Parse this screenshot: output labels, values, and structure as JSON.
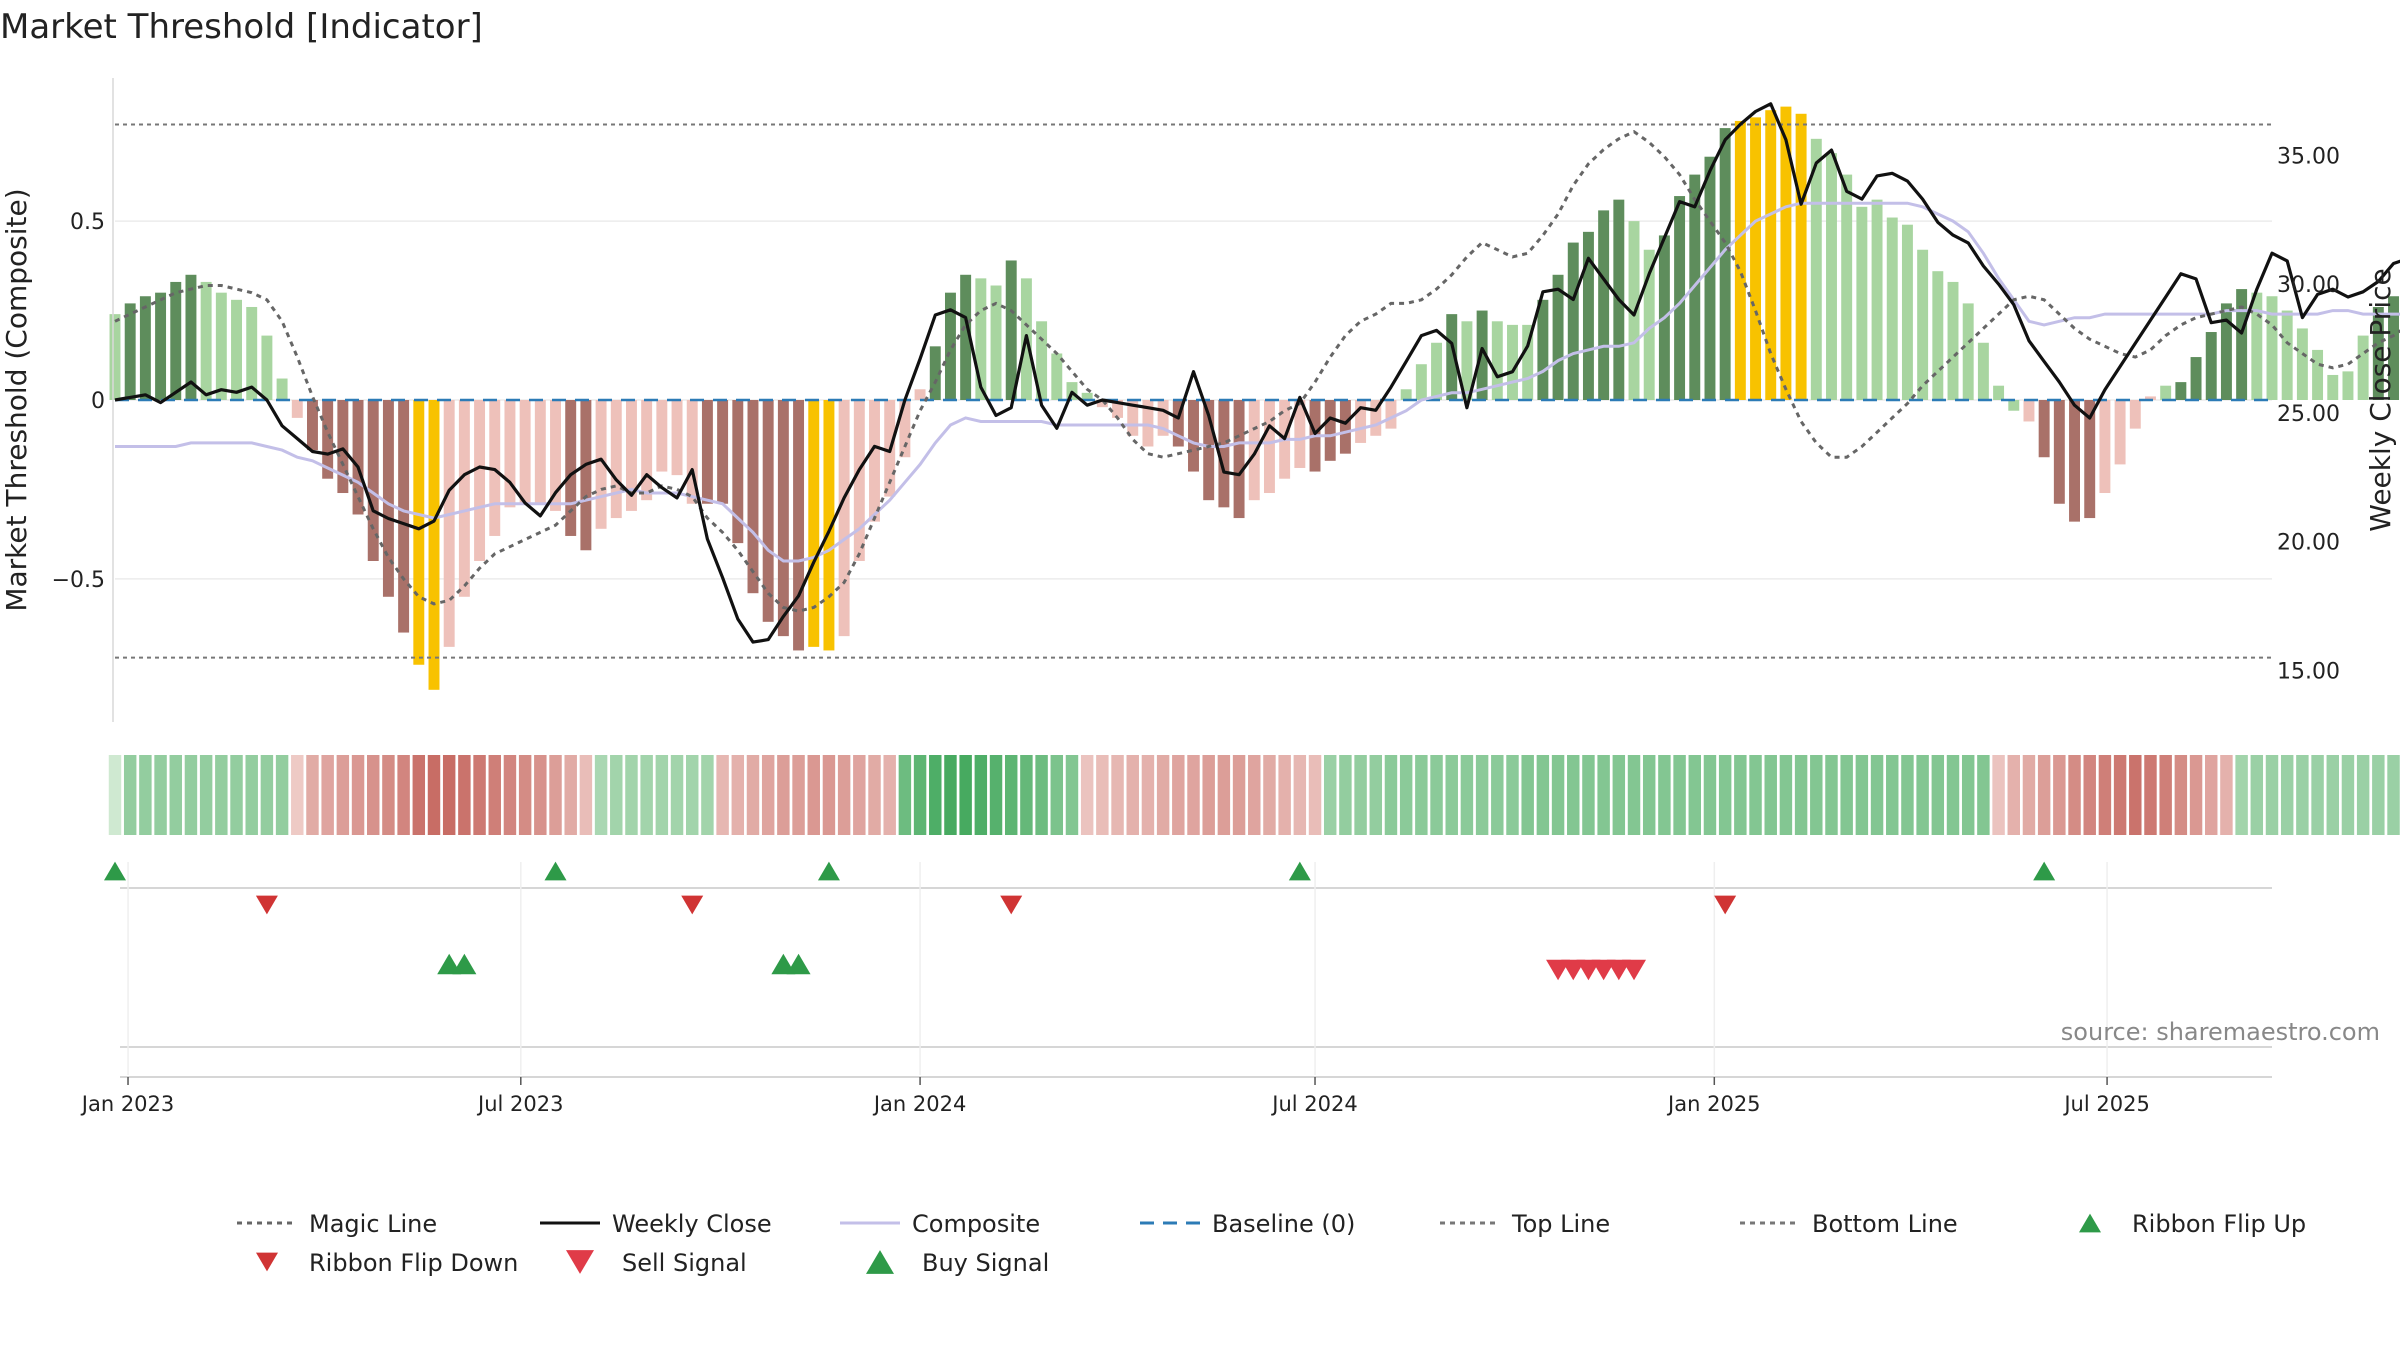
{
  "title": "Market Threshold [Indicator]",
  "source": "source: sharemaestro.com",
  "colors": {
    "green_dark": "#5e8d5c",
    "green_light": "#a8d5a0",
    "red_dark": "#a97169",
    "red_light": "#eec1ba",
    "yellow": "#f8c200",
    "magic_line": "#666666",
    "weekly_close": "#111111",
    "composite": "#c3bfe8",
    "baseline": "#2c7bb6",
    "threshold_line": "#777777",
    "buy": "#2e9a48",
    "sell": "#e03b48",
    "flip_down": "#d03434"
  },
  "chart_data": {
    "type": "bar",
    "title": "Market Threshold [Indicator]",
    "ylabel": "Market Threshold (Composite)",
    "ylabel_right": "Weekly Close Price",
    "ylim": [
      -0.9,
      0.9
    ],
    "ylim_right": [
      13.0,
      38.0
    ],
    "yticks": [
      {
        "value": 0.5,
        "label": "0.5"
      },
      {
        "value": 0,
        "label": "0"
      },
      {
        "value": -0.5,
        "label": "−0.5"
      }
    ],
    "yticks_right": [
      {
        "value": 35,
        "label": "35.00"
      },
      {
        "value": 30,
        "label": "30.00"
      },
      {
        "value": 25,
        "label": "25.00"
      },
      {
        "value": 20,
        "label": "20.00"
      },
      {
        "value": 15,
        "label": "15.00"
      }
    ],
    "x_start": "2022-12-26",
    "x_end": "2025-09-15",
    "xticks": [
      {
        "date": "2023-01-01",
        "label": "Jan 2023"
      },
      {
        "date": "2023-07-01",
        "label": "Jul 2023"
      },
      {
        "date": "2024-01-01",
        "label": "Jan 2024"
      },
      {
        "date": "2024-07-01",
        "label": "Jul 2024"
      },
      {
        "date": "2025-01-01",
        "label": "Jan 2025"
      },
      {
        "date": "2025-07-01",
        "label": "Jul 2025"
      }
    ],
    "top_line": 0.77,
    "bottom_line": -0.72,
    "baseline": 0,
    "composite_bars": [
      0.24,
      0.27,
      0.29,
      0.3,
      0.33,
      0.35,
      0.33,
      0.3,
      0.28,
      0.26,
      0.18,
      0.06,
      -0.05,
      -0.14,
      -0.22,
      -0.26,
      -0.32,
      -0.45,
      -0.55,
      -0.65,
      -0.74,
      -0.81,
      -0.69,
      -0.55,
      -0.45,
      -0.38,
      -0.3,
      -0.29,
      -0.29,
      -0.31,
      -0.38,
      -0.42,
      -0.36,
      -0.33,
      -0.31,
      -0.28,
      -0.2,
      -0.21,
      -0.29,
      -0.29,
      -0.29,
      -0.4,
      -0.54,
      -0.62,
      -0.66,
      -0.7,
      -0.69,
      -0.7,
      -0.66,
      -0.45,
      -0.34,
      -0.27,
      -0.16,
      0.03,
      0.15,
      0.3,
      0.35,
      0.34,
      0.32,
      0.39,
      0.34,
      0.22,
      0.13,
      0.05,
      0.02,
      -0.02,
      -0.05,
      -0.1,
      -0.13,
      -0.1,
      -0.13,
      -0.2,
      -0.28,
      -0.3,
      -0.33,
      -0.28,
      -0.26,
      -0.22,
      -0.19,
      -0.2,
      -0.17,
      -0.15,
      -0.12,
      -0.1,
      -0.08,
      0.03,
      0.1,
      0.16,
      0.24,
      0.22,
      0.25,
      0.22,
      0.21,
      0.21,
      0.28,
      0.35,
      0.44,
      0.47,
      0.53,
      0.56,
      0.5,
      0.42,
      0.46,
      0.57,
      0.63,
      0.68,
      0.76,
      0.78,
      0.79,
      0.81,
      0.82,
      0.8,
      0.73,
      0.69,
      0.63,
      0.54,
      0.56,
      0.51,
      0.49,
      0.42,
      0.36,
      0.33,
      0.27,
      0.16,
      0.04,
      -0.03,
      -0.06,
      -0.16,
      -0.29,
      -0.34,
      -0.33,
      -0.26,
      -0.18,
      -0.08,
      0.01,
      0.04,
      0.05,
      0.12,
      0.19,
      0.27,
      0.31,
      0.3,
      0.29,
      0.25,
      0.2,
      0.14,
      0.07,
      0.08,
      0.18,
      0.26,
      0.29,
      0.3,
      0.34
    ],
    "bar_colors": [
      "gl",
      "gd",
      "gd",
      "gd",
      "gd",
      "gd",
      "gl",
      "gl",
      "gl",
      "gl",
      "gl",
      "gl",
      "rl",
      "rd",
      "rd",
      "rd",
      "rd",
      "rd",
      "rd",
      "rd",
      "yl",
      "yl",
      "rl",
      "rl",
      "rl",
      "rl",
      "rl",
      "rl",
      "rl",
      "rl",
      "rd",
      "rd",
      "rl",
      "rl",
      "rl",
      "rl",
      "rl",
      "rl",
      "rl",
      "rd",
      "rd",
      "rd",
      "rd",
      "rd",
      "rd",
      "rd",
      "yl",
      "yl",
      "rl",
      "rl",
      "rl",
      "rl",
      "rl",
      "rl",
      "gd",
      "gd",
      "gd",
      "gl",
      "gl",
      "gd",
      "gl",
      "gl",
      "gl",
      "gl",
      "gl",
      "rl",
      "rl",
      "rl",
      "rl",
      "rl",
      "rd",
      "rd",
      "rd",
      "rd",
      "rd",
      "rl",
      "rl",
      "rl",
      "rl",
      "rd",
      "rd",
      "rd",
      "rl",
      "rl",
      "rl",
      "gl",
      "gl",
      "gl",
      "gd",
      "gl",
      "gd",
      "gl",
      "gl",
      "gl",
      "gd",
      "gd",
      "gd",
      "gd",
      "gd",
      "gd",
      "gl",
      "gl",
      "gd",
      "gd",
      "gd",
      "gd",
      "gd",
      "yl",
      "yl",
      "yl",
      "yl",
      "yl",
      "gl",
      "gl",
      "gl",
      "gl",
      "gl",
      "gl",
      "gl",
      "gl",
      "gl",
      "gl",
      "gl",
      "gl",
      "gl",
      "gl",
      "rl",
      "rd",
      "rd",
      "rd",
      "rd",
      "rl",
      "rl",
      "rl",
      "rl",
      "gl",
      "gd",
      "gd",
      "gd",
      "gd",
      "gd",
      "gl",
      "gl",
      "gl",
      "gl",
      "gl",
      "gl",
      "gl",
      "gl",
      "gd",
      "gd",
      "gd",
      "gd",
      "gd",
      "gd"
    ],
    "weekly_close": [
      25.5,
      25.6,
      25.7,
      25.4,
      25.8,
      26.2,
      25.7,
      25.9,
      25.8,
      26.0,
      25.5,
      24.5,
      24.0,
      23.5,
      23.4,
      23.6,
      22.9,
      21.2,
      20.9,
      20.7,
      20.5,
      20.8,
      22.0,
      22.6,
      22.9,
      22.8,
      22.3,
      21.5,
      21.0,
      21.9,
      22.6,
      23.0,
      23.2,
      22.4,
      21.8,
      22.6,
      22.1,
      21.7,
      22.8,
      20.1,
      18.6,
      17.0,
      16.1,
      16.2,
      17.1,
      17.9,
      19.2,
      20.4,
      21.7,
      22.8,
      23.7,
      23.5,
      25.5,
      27.1,
      28.8,
      29.0,
      28.7,
      26.0,
      24.9,
      25.2,
      28.0,
      25.3,
      24.4,
      25.8,
      25.3,
      25.5,
      25.4,
      25.3,
      25.2,
      25.1,
      24.8,
      26.6,
      24.9,
      22.7,
      22.6,
      23.4,
      24.5,
      24.0,
      25.6,
      24.2,
      24.8,
      24.6,
      25.2,
      25.1,
      26.0,
      27.0,
      28.0,
      28.2,
      27.7,
      25.2,
      27.5,
      26.4,
      26.6,
      27.6,
      29.7,
      29.8,
      29.4,
      31.0,
      30.2,
      29.4,
      28.8,
      30.4,
      31.8,
      33.2,
      33.0,
      34.4,
      35.6,
      36.2,
      36.7,
      37.0,
      35.6,
      33.1,
      34.7,
      35.2,
      33.6,
      33.3,
      34.2,
      34.3,
      34.0,
      33.3,
      32.4,
      31.9,
      31.6,
      30.7,
      30.0,
      29.2,
      27.8,
      27.0,
      26.2,
      25.3,
      24.8,
      25.9,
      26.8,
      27.7,
      28.6,
      29.5,
      30.4,
      30.2,
      28.5,
      28.6,
      28.1,
      29.8,
      31.2,
      30.9,
      28.7,
      29.6,
      29.8,
      29.5,
      29.7,
      30.1,
      30.8,
      31.0,
      30.5,
      30.3,
      29.9
    ],
    "composite_line": [
      -0.13,
      -0.13,
      -0.13,
      -0.13,
      -0.13,
      -0.12,
      -0.12,
      -0.12,
      -0.12,
      -0.12,
      -0.13,
      -0.14,
      -0.16,
      -0.17,
      -0.19,
      -0.21,
      -0.23,
      -0.26,
      -0.29,
      -0.31,
      -0.32,
      -0.33,
      -0.32,
      -0.31,
      -0.3,
      -0.29,
      -0.29,
      -0.29,
      -0.29,
      -0.29,
      -0.29,
      -0.28,
      -0.27,
      -0.26,
      -0.25,
      -0.26,
      -0.26,
      -0.26,
      -0.27,
      -0.28,
      -0.29,
      -0.33,
      -0.37,
      -0.42,
      -0.45,
      -0.45,
      -0.44,
      -0.42,
      -0.39,
      -0.36,
      -0.32,
      -0.28,
      -0.23,
      -0.18,
      -0.12,
      -0.07,
      -0.05,
      -0.06,
      -0.06,
      -0.06,
      -0.06,
      -0.06,
      -0.07,
      -0.07,
      -0.07,
      -0.07,
      -0.07,
      -0.07,
      -0.07,
      -0.08,
      -0.1,
      -0.12,
      -0.13,
      -0.13,
      -0.12,
      -0.12,
      -0.12,
      -0.11,
      -0.11,
      -0.1,
      -0.1,
      -0.09,
      -0.08,
      -0.07,
      -0.05,
      -0.03,
      0.0,
      0.01,
      0.02,
      0.02,
      0.03,
      0.04,
      0.05,
      0.06,
      0.08,
      0.11,
      0.13,
      0.14,
      0.15,
      0.15,
      0.16,
      0.2,
      0.23,
      0.27,
      0.32,
      0.37,
      0.42,
      0.46,
      0.5,
      0.52,
      0.54,
      0.55,
      0.55,
      0.55,
      0.55,
      0.55,
      0.55,
      0.55,
      0.55,
      0.54,
      0.52,
      0.5,
      0.47,
      0.41,
      0.34,
      0.28,
      0.22,
      0.21,
      0.22,
      0.23,
      0.23,
      0.24,
      0.24,
      0.24,
      0.24,
      0.24,
      0.24,
      0.24,
      0.24,
      0.25,
      0.25,
      0.25,
      0.24,
      0.24,
      0.24,
      0.24,
      0.25,
      0.25,
      0.24,
      0.24,
      0.24,
      0.24,
      0.26,
      0.28,
      0.3
    ],
    "magic_line": [
      0.22,
      0.24,
      0.26,
      0.28,
      0.3,
      0.31,
      0.32,
      0.32,
      0.31,
      0.3,
      0.28,
      0.22,
      0.12,
      0.01,
      -0.09,
      -0.18,
      -0.27,
      -0.36,
      -0.44,
      -0.5,
      -0.55,
      -0.57,
      -0.56,
      -0.52,
      -0.47,
      -0.43,
      -0.41,
      -0.39,
      -0.37,
      -0.35,
      -0.31,
      -0.27,
      -0.25,
      -0.24,
      -0.26,
      -0.26,
      -0.24,
      -0.25,
      -0.27,
      -0.33,
      -0.37,
      -0.42,
      -0.48,
      -0.54,
      -0.58,
      -0.59,
      -0.58,
      -0.55,
      -0.51,
      -0.43,
      -0.33,
      -0.23,
      -0.13,
      -0.03,
      0.05,
      0.14,
      0.21,
      0.25,
      0.27,
      0.25,
      0.21,
      0.17,
      0.13,
      0.08,
      0.03,
      0.0,
      -0.05,
      -0.11,
      -0.15,
      -0.16,
      -0.15,
      -0.14,
      -0.13,
      -0.12,
      -0.1,
      -0.08,
      -0.06,
      -0.03,
      -0.01,
      0.05,
      0.12,
      0.18,
      0.22,
      0.24,
      0.27,
      0.27,
      0.28,
      0.31,
      0.35,
      0.4,
      0.44,
      0.42,
      0.4,
      0.41,
      0.46,
      0.52,
      0.6,
      0.66,
      0.7,
      0.73,
      0.75,
      0.72,
      0.68,
      0.63,
      0.56,
      0.5,
      0.44,
      0.36,
      0.25,
      0.13,
      0.03,
      -0.06,
      -0.12,
      -0.16,
      -0.16,
      -0.13,
      -0.09,
      -0.05,
      -0.01,
      0.04,
      0.08,
      0.12,
      0.16,
      0.2,
      0.24,
      0.28,
      0.29,
      0.28,
      0.24,
      0.2,
      0.17,
      0.15,
      0.13,
      0.12,
      0.14,
      0.18,
      0.21,
      0.23,
      0.24,
      0.25,
      0.26,
      0.24,
      0.21,
      0.16,
      0.13,
      0.1,
      0.09,
      0.1,
      0.13,
      0.16,
      0.18,
      0.21,
      0.26
    ],
    "ribbon": [
      0.05,
      0.45,
      0.45,
      0.45,
      0.45,
      0.45,
      0.45,
      0.45,
      0.45,
      0.45,
      0.45,
      0.45,
      -0.1,
      -0.35,
      -0.4,
      -0.45,
      -0.5,
      -0.55,
      -0.6,
      -0.65,
      -0.8,
      -0.85,
      -0.85,
      -0.8,
      -0.75,
      -0.7,
      -0.65,
      -0.6,
      -0.55,
      -0.45,
      -0.35,
      -0.2,
      0.3,
      0.35,
      0.35,
      0.35,
      0.35,
      0.35,
      0.35,
      0.35,
      -0.25,
      -0.3,
      -0.35,
      -0.4,
      -0.45,
      -0.45,
      -0.5,
      -0.5,
      -0.45,
      -0.4,
      -0.35,
      -0.3,
      0.7,
      0.8,
      0.9,
      0.95,
      0.95,
      0.9,
      0.85,
      0.8,
      0.75,
      0.7,
      0.6,
      0.55,
      -0.15,
      -0.2,
      -0.25,
      -0.3,
      -0.3,
      -0.35,
      -0.4,
      -0.4,
      -0.45,
      -0.45,
      -0.45,
      -0.4,
      -0.35,
      -0.3,
      -0.25,
      -0.2,
      0.4,
      0.45,
      0.45,
      0.45,
      0.5,
      0.5,
      0.5,
      0.5,
      0.5,
      0.5,
      0.5,
      0.5,
      0.5,
      0.55,
      0.55,
      0.55,
      0.55,
      0.55,
      0.55,
      0.55,
      0.55,
      0.55,
      0.55,
      0.55,
      0.55,
      0.55,
      0.55,
      0.55,
      0.55,
      0.55,
      0.55,
      0.55,
      0.55,
      0.55,
      0.55,
      0.55,
      0.55,
      0.55,
      0.55,
      0.55,
      0.55,
      0.55,
      0.55,
      0.55,
      -0.15,
      -0.3,
      -0.35,
      -0.45,
      -0.5,
      -0.6,
      -0.65,
      -0.7,
      -0.75,
      -0.8,
      -0.75,
      -0.7,
      -0.6,
      -0.5,
      -0.4,
      -0.3,
      0.35,
      0.4,
      0.4,
      0.4,
      0.4,
      0.4,
      0.4,
      0.4,
      0.4,
      0.4,
      0.4,
      0.4,
      0.4,
      0.35,
      0.3,
      0.3,
      0.25,
      0.25,
      0.2
    ],
    "ribbon_flip_up": [
      "2022-12-26",
      "2023-07-17",
      "2023-11-20",
      "2024-06-24",
      "2025-06-02"
    ],
    "ribbon_flip_down": [
      "2023-03-06",
      "2023-09-18",
      "2024-02-12",
      "2025-01-06"
    ],
    "buy_signal": [
      "2023-05-29",
      "2023-06-05",
      "2023-10-30",
      "2023-11-06"
    ],
    "sell_signal": [
      "2024-10-21",
      "2024-10-28",
      "2024-11-04",
      "2024-11-11",
      "2024-11-18",
      "2024-11-25"
    ],
    "legend": [
      {
        "label": "Magic Line",
        "kind": "dotted",
        "color": "#666666"
      },
      {
        "label": "Weekly Close",
        "kind": "solid",
        "color": "#111111"
      },
      {
        "label": "Composite",
        "kind": "solid",
        "color": "#c3bfe8"
      },
      {
        "label": "Baseline (0)",
        "kind": "dashed",
        "color": "#2c7bb6"
      },
      {
        "label": "Top Line",
        "kind": "dotted",
        "color": "#777777"
      },
      {
        "label": "Bottom Line",
        "kind": "dotted",
        "color": "#777777"
      },
      {
        "label": "Ribbon Flip Up",
        "kind": "tri-up",
        "color": "#2e9a48"
      },
      {
        "label": "Ribbon Flip Down",
        "kind": "tri-down",
        "color": "#d03434"
      },
      {
        "label": "Sell Signal",
        "kind": "tri-down",
        "color": "#e03b48"
      },
      {
        "label": "Buy Signal",
        "kind": "tri-up",
        "color": "#2e9a48"
      }
    ]
  }
}
